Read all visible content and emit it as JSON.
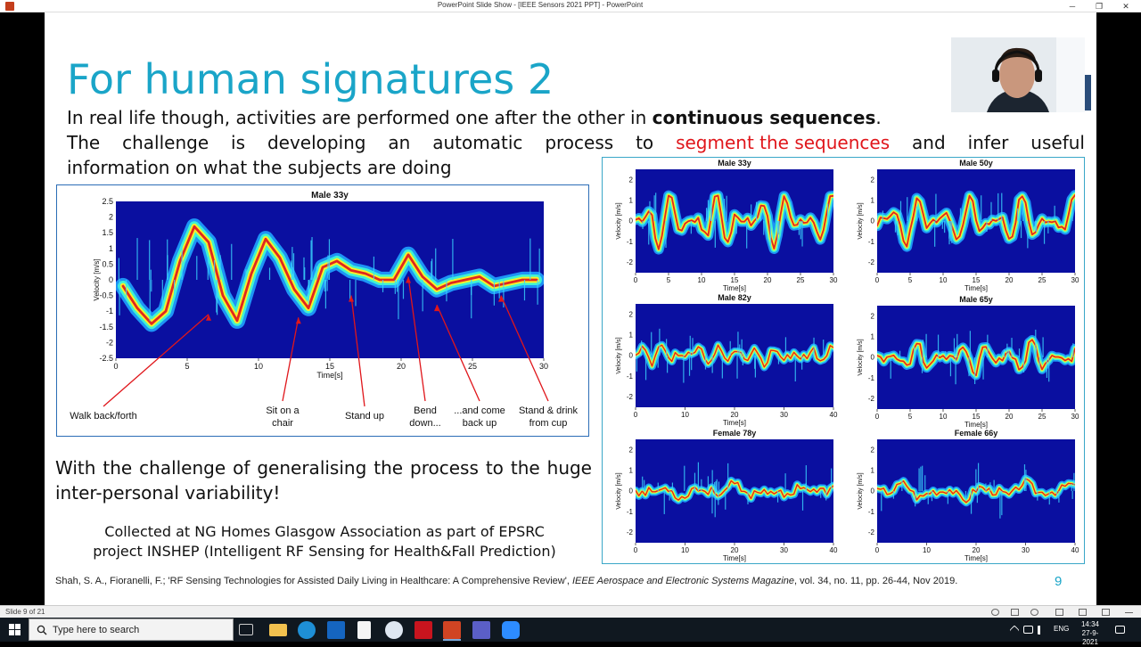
{
  "window": {
    "title": "PowerPoint Slide Show - [IEEE Sensors 2021 PPT] - PowerPoint",
    "minimize_glyph": "─",
    "restore_glyph": "❐",
    "close_glyph": "✕"
  },
  "slide": {
    "title": "For human signatures 2",
    "intro_line1_plain": "In real life though, activities are performed one after the other in ",
    "intro_line1_bold": "continuous sequences",
    "intro_line1_end": ".",
    "intro_line2_words": [
      "The",
      "challenge",
      "is",
      "developing",
      "an",
      "automatic",
      "process",
      "to"
    ],
    "intro_line2_red": "segment the sequences",
    "intro_line2_tail_words": [
      "and",
      "infer",
      "useful"
    ],
    "intro_line3": "information on what the subjects are doing",
    "challenge_text": "With the challenge of generalising the process to the huge inter-personal variability!",
    "collected_line1": "Collected at NG Homes Glasgow Association as part of EPSRC",
    "collected_line2": "project INSHEP (Intelligent RF Sensing for Health&Fall Prediction)",
    "citation_plain": "Shah, S. A., Fioranelli, F.; 'RF Sensing Technologies for Assisted Daily Living in Healthcare: A Comprehensive Review', ",
    "citation_journal": "IEEE Aerospace and Electronic Systems Magazine",
    "citation_tail": ", vol. 34, no. 11, pp. 26-44, Nov 2019.",
    "page_number": "9"
  },
  "chart_data": [
    {
      "type": "heatmap",
      "title": "Male 33y",
      "xlabel": "Time[s]",
      "ylabel": "Velocity [m/s]",
      "xlim": [
        0,
        30
      ],
      "ylim": [
        -2.5,
        2.5
      ],
      "xticks": [
        0,
        5,
        10,
        15,
        20,
        25,
        30
      ],
      "yticks": [
        2.5,
        2,
        1.5,
        1,
        0.5,
        0,
        -0.5,
        -1,
        -1.5,
        -2,
        -2.5
      ],
      "signature": [
        [
          0.5,
          -0.2
        ],
        [
          1.5,
          -0.9
        ],
        [
          2.5,
          -1.4
        ],
        [
          3.5,
          -1.0
        ],
        [
          4.5,
          0.6
        ],
        [
          5.5,
          1.7
        ],
        [
          6.5,
          1.2
        ],
        [
          7.5,
          -0.5
        ],
        [
          8.5,
          -1.3
        ],
        [
          9.5,
          0.2
        ],
        [
          10.5,
          1.3
        ],
        [
          11.5,
          0.7
        ],
        [
          12.5,
          -0.3
        ],
        [
          13.5,
          -0.9
        ],
        [
          14.5,
          0.4
        ],
        [
          15.5,
          0.6
        ],
        [
          16.5,
          0.3
        ],
        [
          17.5,
          0.2
        ],
        [
          18.5,
          0.0
        ],
        [
          19.5,
          0.0
        ],
        [
          20.5,
          0.8
        ],
        [
          21.5,
          0.1
        ],
        [
          22.5,
          -0.3
        ],
        [
          23.5,
          -0.1
        ],
        [
          24.5,
          0.0
        ],
        [
          25.5,
          0.1
        ],
        [
          26.5,
          -0.2
        ],
        [
          27.5,
          -0.1
        ],
        [
          28.5,
          0.0
        ],
        [
          29.5,
          0.0
        ]
      ],
      "annotations": [
        {
          "label": "Walk back/forth",
          "x": 6.5
        },
        {
          "label": "Sit on a\nchair",
          "x": 12.8
        },
        {
          "label": "Stand up",
          "x": 16.5
        },
        {
          "label": "Bend\ndown...",
          "x": 20.5
        },
        {
          "label": "...and come\nback up",
          "x": 22.5
        },
        {
          "label": "Stand & drink\nfrom cup",
          "x": 27
        }
      ]
    },
    {
      "type": "heatmap",
      "title": "Male 33y",
      "xlabel": "Time[s]",
      "ylabel": "Velocity [m/s]",
      "xlim": [
        0,
        30
      ],
      "ylim": [
        -2.5,
        2.5
      ],
      "xticks": [
        0,
        5,
        10,
        15,
        20,
        25,
        30
      ],
      "yticks": [
        2,
        1,
        0,
        -1,
        -2
      ]
    },
    {
      "type": "heatmap",
      "title": "Male 50y",
      "xlabel": "Time[s]",
      "ylabel": "Velocity [m/s]",
      "xlim": [
        0,
        30
      ],
      "ylim": [
        -2.5,
        2.5
      ],
      "xticks": [
        0,
        5,
        10,
        15,
        20,
        25,
        30
      ],
      "yticks": [
        2,
        1,
        0,
        -1,
        -2
      ]
    },
    {
      "type": "heatmap",
      "title": "Male 82y",
      "xlabel": "Time[s]",
      "ylabel": "Velocity [m/s]",
      "xlim": [
        0,
        40
      ],
      "ylim": [
        -2.5,
        2.5
      ],
      "xticks": [
        0,
        10,
        20,
        30,
        40
      ],
      "yticks": [
        2,
        1,
        0,
        -1,
        -2
      ]
    },
    {
      "type": "heatmap",
      "title": "Male 65y",
      "xlabel": "Time[s]",
      "ylabel": "Velocity [m/s]",
      "xlim": [
        0,
        30
      ],
      "ylim": [
        -2.5,
        2.5
      ],
      "xticks": [
        0,
        5,
        10,
        15,
        20,
        25,
        30
      ],
      "yticks": [
        2,
        1,
        0,
        -1,
        -2
      ]
    },
    {
      "type": "heatmap",
      "title": "Female 78y",
      "xlabel": "Time[s]",
      "ylabel": "Velocity [m/s]",
      "xlim": [
        0,
        40
      ],
      "ylim": [
        -2.5,
        2.5
      ],
      "xticks": [
        0,
        10,
        20,
        30,
        40
      ],
      "yticks": [
        2,
        1,
        0,
        -1,
        -2
      ]
    },
    {
      "type": "heatmap",
      "title": "Female 66y",
      "xlabel": "Time[s]",
      "ylabel": "Velocity [m/s]",
      "xlim": [
        0,
        40
      ],
      "ylim": [
        -2.5,
        2.5
      ],
      "xticks": [
        0,
        10,
        20,
        30,
        40
      ],
      "yticks": [
        2,
        1,
        0,
        -1,
        -2
      ]
    }
  ],
  "statusbar": {
    "slide_counter": "Slide 9 of 21"
  },
  "taskbar": {
    "search_placeholder": "Type here to search",
    "tray_language": "ENG",
    "tray_time": "14:34",
    "tray_date": "27-9-2021"
  },
  "colors": {
    "title": "#1aa5c8",
    "highlight": "#e0161b",
    "spectrogram_bg": "#0a0fa0",
    "panel_border": "#2b6db6"
  }
}
